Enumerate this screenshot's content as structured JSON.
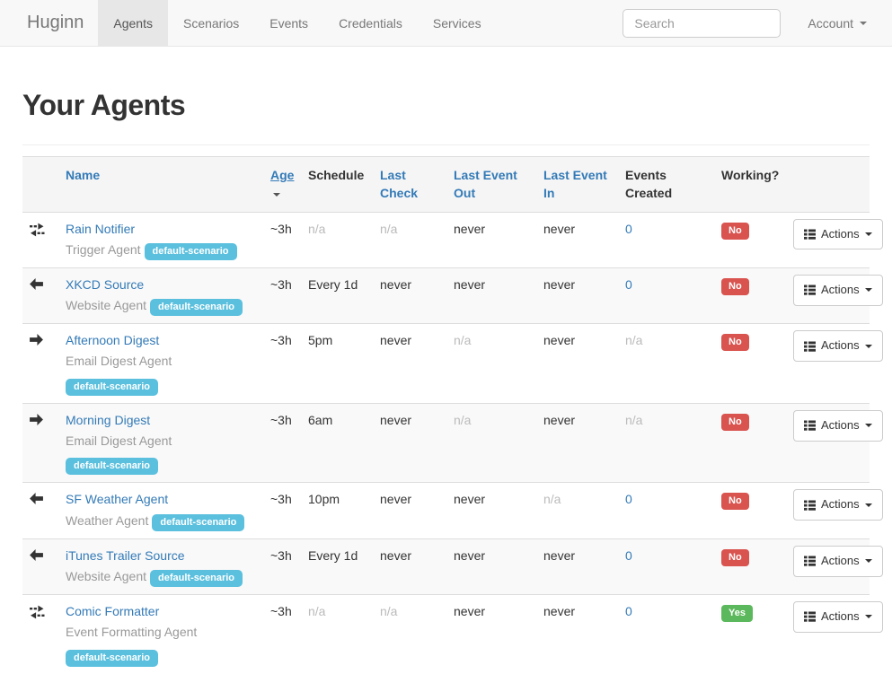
{
  "navbar": {
    "brand": "Huginn",
    "items": [
      {
        "label": "Agents",
        "active": true
      },
      {
        "label": "Scenarios",
        "active": false
      },
      {
        "label": "Events",
        "active": false
      },
      {
        "label": "Credentials",
        "active": false
      },
      {
        "label": "Services",
        "active": false
      }
    ],
    "search_placeholder": "Search",
    "account_label": "Account"
  },
  "page": {
    "title": "Your Agents"
  },
  "table": {
    "headers": {
      "name": "Name",
      "age": "Age",
      "schedule": "Schedule",
      "last_check": "Last Check",
      "last_event_out": "Last Event Out",
      "last_event_in": "Last Event In",
      "events_created": "Events Created",
      "working": "Working?"
    },
    "sorted_by": "age",
    "actions_label": "Actions",
    "rows": [
      {
        "icon": "exchange-icon",
        "name": "Rain Notifier",
        "type": "Trigger Agent",
        "scenario": "default-scenario",
        "badge_inline": true,
        "striped": false,
        "age": {
          "text": "~3h"
        },
        "schedule": {
          "text": "n/a",
          "muted": true
        },
        "last_check": {
          "text": "n/a",
          "muted": true
        },
        "last_event_out": {
          "text": "never"
        },
        "last_event_in": {
          "text": "never"
        },
        "events_created": {
          "text": "0",
          "link": true
        },
        "working": {
          "text": "No",
          "status": "danger"
        }
      },
      {
        "icon": "arrow-left-icon",
        "name": "XKCD Source",
        "type": "Website Agent",
        "scenario": "default-scenario",
        "badge_inline": true,
        "striped": true,
        "age": {
          "text": "~3h"
        },
        "schedule": {
          "text": "Every 1d"
        },
        "last_check": {
          "text": "never"
        },
        "last_event_out": {
          "text": "never"
        },
        "last_event_in": {
          "text": "never"
        },
        "events_created": {
          "text": "0",
          "link": true
        },
        "working": {
          "text": "No",
          "status": "danger"
        }
      },
      {
        "icon": "arrow-right-icon",
        "name": "Afternoon Digest",
        "type": "Email Digest Agent",
        "scenario": "default-scenario",
        "badge_inline": false,
        "striped": false,
        "age": {
          "text": "~3h"
        },
        "schedule": {
          "text": "5pm"
        },
        "last_check": {
          "text": "never"
        },
        "last_event_out": {
          "text": "n/a",
          "muted": true
        },
        "last_event_in": {
          "text": "never"
        },
        "events_created": {
          "text": "n/a",
          "muted": true
        },
        "working": {
          "text": "No",
          "status": "danger"
        }
      },
      {
        "icon": "arrow-right-icon",
        "name": "Morning Digest",
        "type": "Email Digest Agent",
        "scenario": "default-scenario",
        "badge_inline": false,
        "striped": true,
        "age": {
          "text": "~3h"
        },
        "schedule": {
          "text": "6am"
        },
        "last_check": {
          "text": "never"
        },
        "last_event_out": {
          "text": "n/a",
          "muted": true
        },
        "last_event_in": {
          "text": "never"
        },
        "events_created": {
          "text": "n/a",
          "muted": true
        },
        "working": {
          "text": "No",
          "status": "danger"
        }
      },
      {
        "icon": "arrow-left-icon",
        "name": "SF Weather Agent",
        "type": "Weather Agent",
        "scenario": "default-scenario",
        "badge_inline": true,
        "striped": false,
        "age": {
          "text": "~3h"
        },
        "schedule": {
          "text": "10pm"
        },
        "last_check": {
          "text": "never"
        },
        "last_event_out": {
          "text": "never"
        },
        "last_event_in": {
          "text": "n/a",
          "muted": true
        },
        "events_created": {
          "text": "0",
          "link": true
        },
        "working": {
          "text": "No",
          "status": "danger"
        }
      },
      {
        "icon": "arrow-left-icon",
        "name": "iTunes Trailer Source",
        "type": "Website Agent",
        "scenario": "default-scenario",
        "badge_inline": true,
        "striped": true,
        "age": {
          "text": "~3h"
        },
        "schedule": {
          "text": "Every 1d"
        },
        "last_check": {
          "text": "never"
        },
        "last_event_out": {
          "text": "never"
        },
        "last_event_in": {
          "text": "never"
        },
        "events_created": {
          "text": "0",
          "link": true
        },
        "working": {
          "text": "No",
          "status": "danger"
        }
      },
      {
        "icon": "exchange-icon",
        "name": "Comic Formatter",
        "type": "Event Formatting Agent",
        "scenario": "default-scenario",
        "badge_inline": false,
        "striped": false,
        "age": {
          "text": "~3h"
        },
        "schedule": {
          "text": "n/a",
          "muted": true
        },
        "last_check": {
          "text": "n/a",
          "muted": true
        },
        "last_event_out": {
          "text": "never"
        },
        "last_event_in": {
          "text": "never"
        },
        "events_created": {
          "text": "0",
          "link": true
        },
        "working": {
          "text": "Yes",
          "status": "success"
        }
      }
    ]
  },
  "colors": {
    "link_blue": "#337ab7",
    "badge_info": "#5bc0de",
    "label_danger": "#d9534f",
    "label_success": "#5cb85c",
    "muted_text": "#bbbbbb",
    "navbar_bg": "#f8f8f8",
    "navbar_active_bg": "#e7e7e7",
    "header_row_bg": "#f5f5f5",
    "striped_row_bg": "#f9f9f9"
  }
}
